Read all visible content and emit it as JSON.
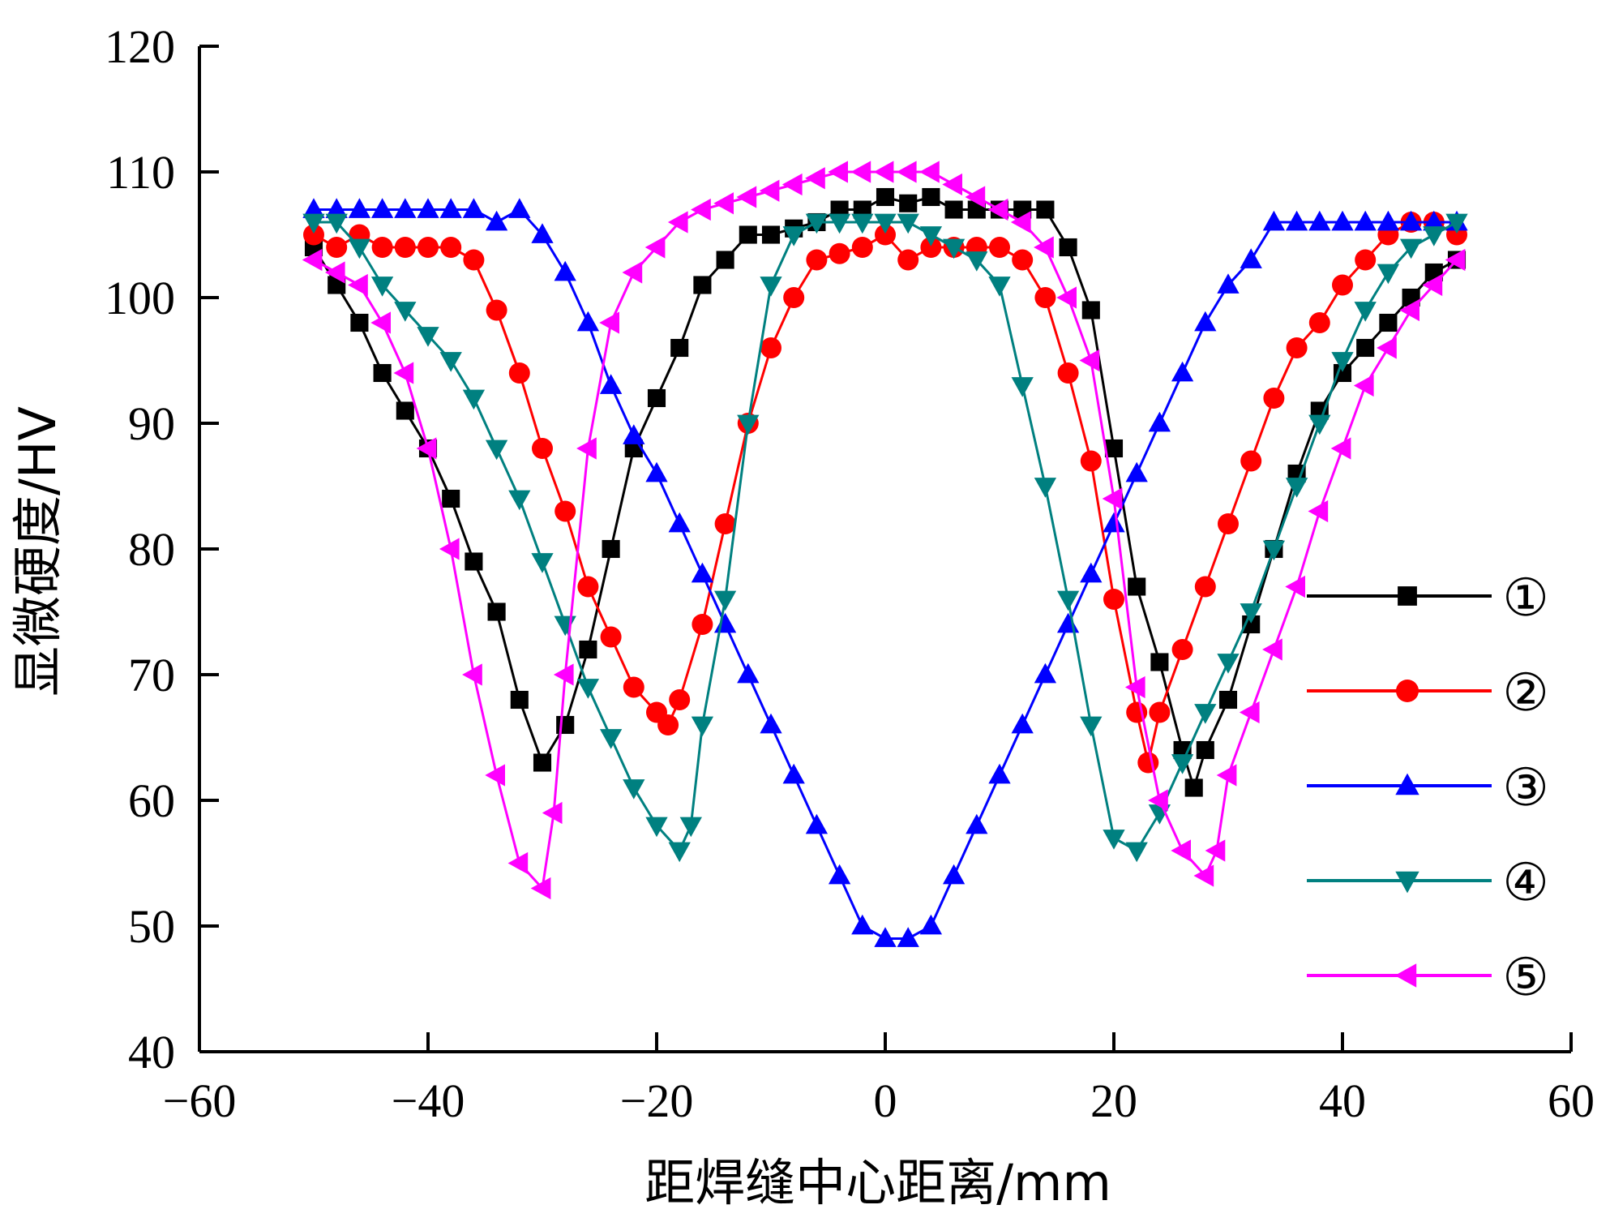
{
  "chart_data": {
    "type": "line",
    "title": "",
    "xlabel": "距焊缝中心距离/mm",
    "ylabel": "显微硬度/HV",
    "xlim": [
      -60,
      60
    ],
    "ylim": [
      40,
      120
    ],
    "x_ticks": [
      -60,
      -40,
      -20,
      0,
      20,
      40,
      60
    ],
    "x_tick_labels": [
      "−60",
      "−40",
      "−20",
      "0",
      "20",
      "40",
      "60"
    ],
    "y_ticks": [
      40,
      50,
      60,
      70,
      80,
      90,
      100,
      110,
      120
    ],
    "y_tick_labels": [
      "40",
      "50",
      "60",
      "70",
      "80",
      "90",
      "100",
      "110",
      "120"
    ],
    "grid": false,
    "legend_position": "right",
    "series": [
      {
        "name": "①",
        "color": "#000000",
        "marker": "square",
        "x": [
          -50,
          -48,
          -46,
          -44,
          -42,
          -40,
          -38,
          -36,
          -34,
          -32,
          -30,
          -28,
          -26,
          -24,
          -22,
          -20,
          -18,
          -16,
          -14,
          -12,
          -10,
          -8,
          -6,
          -4,
          -2,
          0,
          2,
          4,
          6,
          8,
          10,
          12,
          14,
          16,
          18,
          20,
          22,
          24,
          26,
          27,
          28,
          30,
          32,
          34,
          36,
          38,
          40,
          42,
          44,
          46,
          48,
          50
        ],
        "y": [
          104,
          101,
          98,
          94,
          91,
          88,
          84,
          79,
          75,
          68,
          63,
          66,
          72,
          80,
          88,
          92,
          96,
          101,
          103,
          105,
          105,
          105.5,
          106,
          107,
          107,
          108,
          107.5,
          108,
          107,
          107,
          107,
          107,
          107,
          104,
          99,
          88,
          77,
          71,
          64,
          61,
          64,
          68,
          74,
          80,
          86,
          91,
          94,
          96,
          98,
          100,
          102,
          103
        ]
      },
      {
        "name": "②",
        "color": "#ff0000",
        "marker": "circle",
        "x": [
          -50,
          -48,
          -46,
          -44,
          -42,
          -40,
          -38,
          -36,
          -34,
          -32,
          -30,
          -28,
          -26,
          -24,
          -22,
          -20,
          -19,
          -18,
          -16,
          -14,
          -12,
          -10,
          -8,
          -6,
          -4,
          -2,
          0,
          2,
          4,
          6,
          8,
          10,
          12,
          14,
          16,
          18,
          20,
          22,
          23,
          24,
          26,
          28,
          30,
          32,
          34,
          36,
          38,
          40,
          42,
          44,
          46,
          48,
          50
        ],
        "y": [
          105,
          104,
          105,
          104,
          104,
          104,
          104,
          103,
          99,
          94,
          88,
          83,
          77,
          73,
          69,
          67,
          66,
          68,
          74,
          82,
          90,
          96,
          100,
          103,
          103.5,
          104,
          105,
          103,
          104,
          104,
          104,
          104,
          103,
          100,
          94,
          87,
          76,
          67,
          63,
          67,
          72,
          77,
          82,
          87,
          92,
          96,
          98,
          101,
          103,
          105,
          106,
          106,
          105
        ]
      },
      {
        "name": "③",
        "color": "#0000ff",
        "marker": "triangle-up",
        "x": [
          -50,
          -48,
          -46,
          -44,
          -42,
          -40,
          -38,
          -36,
          -34,
          -32,
          -30,
          -28,
          -26,
          -24,
          -22,
          -20,
          -18,
          -16,
          -14,
          -12,
          -10,
          -8,
          -6,
          -4,
          -2,
          0,
          2,
          4,
          6,
          8,
          10,
          12,
          14,
          16,
          18,
          20,
          22,
          24,
          26,
          28,
          30,
          32,
          34,
          36,
          38,
          40,
          42,
          44,
          46,
          48,
          50
        ],
        "y": [
          107,
          107,
          107,
          107,
          107,
          107,
          107,
          107,
          106,
          107,
          105,
          102,
          98,
          93,
          89,
          86,
          82,
          78,
          74,
          70,
          66,
          62,
          58,
          54,
          50,
          49,
          49,
          50,
          54,
          58,
          62,
          66,
          70,
          74,
          78,
          82,
          86,
          90,
          94,
          98,
          101,
          103,
          106,
          106,
          106,
          106,
          106,
          106,
          106,
          106,
          106
        ]
      },
      {
        "name": "④",
        "color": "#008080",
        "marker": "triangle-down",
        "x": [
          -50,
          -48,
          -46,
          -44,
          -42,
          -40,
          -38,
          -36,
          -34,
          -32,
          -30,
          -28,
          -26,
          -24,
          -22,
          -20,
          -18,
          -17,
          -16,
          -14,
          -12,
          -10,
          -8,
          -6,
          -4,
          -2,
          0,
          2,
          4,
          6,
          8,
          10,
          12,
          14,
          16,
          18,
          20,
          22,
          24,
          26,
          28,
          30,
          32,
          34,
          36,
          38,
          40,
          42,
          44,
          46,
          48,
          50
        ],
        "y": [
          106,
          106,
          104,
          101,
          99,
          97,
          95,
          92,
          88,
          84,
          79,
          74,
          69,
          65,
          61,
          58,
          56,
          58,
          66,
          76,
          90,
          101,
          105,
          106,
          106,
          106,
          106,
          106,
          105,
          104,
          103,
          101,
          93,
          85,
          76,
          66,
          57,
          56,
          59,
          63,
          67,
          71,
          75,
          80,
          85,
          90,
          95,
          99,
          102,
          104,
          105,
          106
        ]
      },
      {
        "name": "⑤",
        "color": "#ff00ff",
        "marker": "triangle-left",
        "x": [
          -50,
          -48,
          -46,
          -44,
          -42,
          -40,
          -38,
          -36,
          -34,
          -32,
          -30,
          -29,
          -28,
          -26,
          -24,
          -22,
          -20,
          -18,
          -16,
          -14,
          -12,
          -10,
          -8,
          -6,
          -4,
          -2,
          0,
          2,
          4,
          6,
          8,
          10,
          12,
          14,
          16,
          18,
          20,
          22,
          24,
          26,
          28,
          29,
          30,
          32,
          34,
          36,
          38,
          40,
          42,
          44,
          46,
          48,
          50
        ],
        "y": [
          103,
          102,
          101,
          98,
          94,
          88,
          80,
          70,
          62,
          55,
          53,
          59,
          70,
          88,
          98,
          102,
          104,
          106,
          107,
          107.5,
          108,
          108.5,
          109,
          109.5,
          110,
          110,
          110,
          110,
          110,
          109,
          108,
          107,
          106,
          104,
          100,
          95,
          84,
          69,
          60,
          56,
          54,
          56,
          62,
          67,
          72,
          77,
          83,
          88,
          93,
          96,
          99,
          101,
          103
        ]
      }
    ]
  }
}
